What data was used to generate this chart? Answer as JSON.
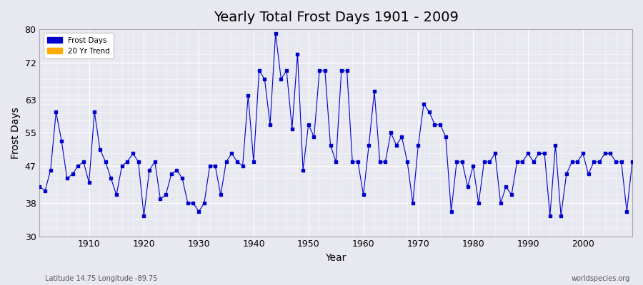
{
  "title": "Yearly Total Frost Days 1901 - 2009",
  "xlabel": "Year",
  "ylabel": "Frost Days",
  "xlim": [
    1901,
    2009
  ],
  "ylim": [
    30,
    80
  ],
  "yticks": [
    30,
    38,
    47,
    55,
    63,
    72,
    80
  ],
  "xticks": [
    1910,
    1920,
    1930,
    1940,
    1950,
    1960,
    1970,
    1980,
    1990,
    2000
  ],
  "line_color": "#0000cc",
  "marker_color": "#0000cc",
  "background_color": "#e8e8f0",
  "legend_entries": [
    "Frost Days",
    "20 Yr Trend"
  ],
  "legend_colors": [
    "#0000cc",
    "#ffaa00"
  ],
  "footer_left": "Latitude 14.75 Longitude -89.75",
  "footer_right": "worldspecies.org",
  "years": [
    1901,
    1902,
    1903,
    1904,
    1905,
    1906,
    1907,
    1908,
    1909,
    1910,
    1911,
    1912,
    1913,
    1914,
    1915,
    1916,
    1917,
    1918,
    1919,
    1920,
    1921,
    1922,
    1923,
    1924,
    1925,
    1926,
    1927,
    1928,
    1929,
    1930,
    1931,
    1932,
    1933,
    1934,
    1935,
    1936,
    1937,
    1938,
    1939,
    1940,
    1941,
    1942,
    1943,
    1944,
    1945,
    1946,
    1947,
    1948,
    1949,
    1950,
    1951,
    1952,
    1953,
    1954,
    1955,
    1956,
    1957,
    1958,
    1959,
    1960,
    1961,
    1962,
    1963,
    1964,
    1965,
    1966,
    1967,
    1968,
    1969,
    1970,
    1971,
    1972,
    1973,
    1974,
    1975,
    1976,
    1977,
    1978,
    1979,
    1980,
    1981,
    1982,
    1983,
    1984,
    1985,
    1986,
    1987,
    1988,
    1989,
    1990,
    1991,
    1992,
    1993,
    1994,
    1995,
    1996,
    1997,
    1998,
    1999,
    2000,
    2001,
    2002,
    2003,
    2004,
    2005,
    2006,
    2007,
    2008,
    2009
  ],
  "values": [
    42,
    41,
    46,
    60,
    53,
    44,
    45,
    47,
    48,
    43,
    60,
    51,
    48,
    44,
    40,
    47,
    48,
    50,
    48,
    35,
    46,
    48,
    39,
    40,
    45,
    46,
    44,
    38,
    38,
    36,
    38,
    47,
    47,
    40,
    48,
    50,
    48,
    47,
    64,
    48,
    70,
    68,
    57,
    79,
    68,
    70,
    56,
    74,
    46,
    57,
    54,
    70,
    70,
    52,
    48,
    70,
    70,
    48,
    48,
    40,
    52,
    65,
    48,
    48,
    55,
    52,
    54,
    48,
    38,
    52,
    62,
    60,
    57,
    57,
    54,
    36,
    48,
    48,
    42,
    47,
    38,
    48,
    48,
    50,
    38,
    42,
    40,
    48,
    48,
    50,
    48,
    50,
    50,
    35,
    52,
    35,
    45,
    48,
    48,
    50,
    45,
    48,
    48,
    50,
    50,
    48,
    48,
    36,
    48
  ]
}
